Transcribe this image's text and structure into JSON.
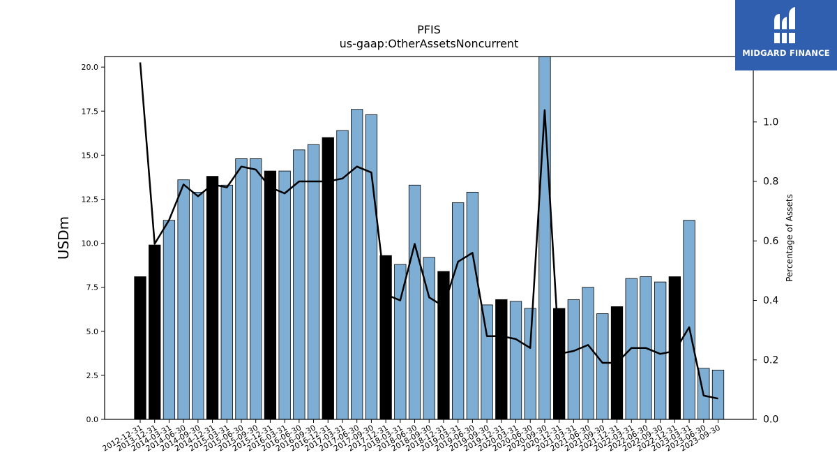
{
  "chart_data": {
    "type": "bar",
    "title": "PFIS",
    "subtitle": "us-gaap:OtherAssetsNoncurrent",
    "ylabel": "USDm",
    "y2label": "Percentage of Assets",
    "ylim": [
      0,
      20.6
    ],
    "y2lim": [
      0,
      1.22
    ],
    "yticks": [
      "0.0",
      "2.5",
      "5.0",
      "7.5",
      "10.0",
      "12.5",
      "15.0",
      "17.5",
      "20.0"
    ],
    "y2ticks": [
      "0.0",
      "0.2",
      "0.4",
      "0.6",
      "0.8",
      "1.0"
    ],
    "categories": [
      "2012-12-31",
      "2013-12-31",
      "2014-03-31",
      "2014-06-30",
      "2014-09-30",
      "2014-12-31",
      "2015-03-31",
      "2015-06-30",
      "2015-09-30",
      "2015-12-31",
      "2016-03-31",
      "2016-06-30",
      "2016-09-30",
      "2016-12-31",
      "2017-03-31",
      "2017-06-30",
      "2017-09-30",
      "2017-12-31",
      "2018-03-31",
      "2018-06-30",
      "2018-09-30",
      "2018-12-31",
      "2019-03-31",
      "2019-06-30",
      "2019-09-30",
      "2019-12-31",
      "2020-03-31",
      "2020-06-30",
      "2020-09-30",
      "2020-12-31",
      "2021-03-31",
      "2021-06-30",
      "2021-09-30",
      "2021-12-31",
      "2022-03-31",
      "2022-06-30",
      "2022-09-30",
      "2022-12-31",
      "2023-03-31",
      "2023-06-30",
      "2023-09-30"
    ],
    "series": [
      {
        "kind": "bar",
        "values": [
          8.1,
          9.9,
          11.3,
          13.6,
          12.9,
          13.8,
          13.3,
          14.8,
          14.8,
          14.1,
          14.1,
          15.3,
          15.6,
          16.0,
          16.4,
          17.6,
          17.3,
          9.3,
          8.8,
          13.3,
          9.2,
          8.4,
          12.3,
          12.9,
          6.5,
          6.8,
          6.7,
          6.3,
          20.7,
          6.3,
          6.8,
          7.5,
          6.0,
          6.4,
          8.0,
          8.1,
          7.8,
          8.1,
          11.3,
          2.9,
          2.8
        ],
        "year_end_color": "#000000",
        "quarter_color": "#7eaed3"
      },
      {
        "kind": "line",
        "axis": "right",
        "color": "#000000",
        "values": [
          1.2,
          0.59,
          0.67,
          0.79,
          0.75,
          0.79,
          0.78,
          0.85,
          0.84,
          0.78,
          0.76,
          0.8,
          0.8,
          0.8,
          0.81,
          0.85,
          0.83,
          0.42,
          0.4,
          0.59,
          0.41,
          0.38,
          0.53,
          0.56,
          0.28,
          0.28,
          0.27,
          0.24,
          1.04,
          0.22,
          0.23,
          0.25,
          0.19,
          0.19,
          0.24,
          0.24,
          0.22,
          0.23,
          0.31,
          0.08,
          0.07
        ]
      }
    ]
  },
  "logo": {
    "text": "MIDGARD FINANCE",
    "bg_color": "#2f5fae"
  }
}
